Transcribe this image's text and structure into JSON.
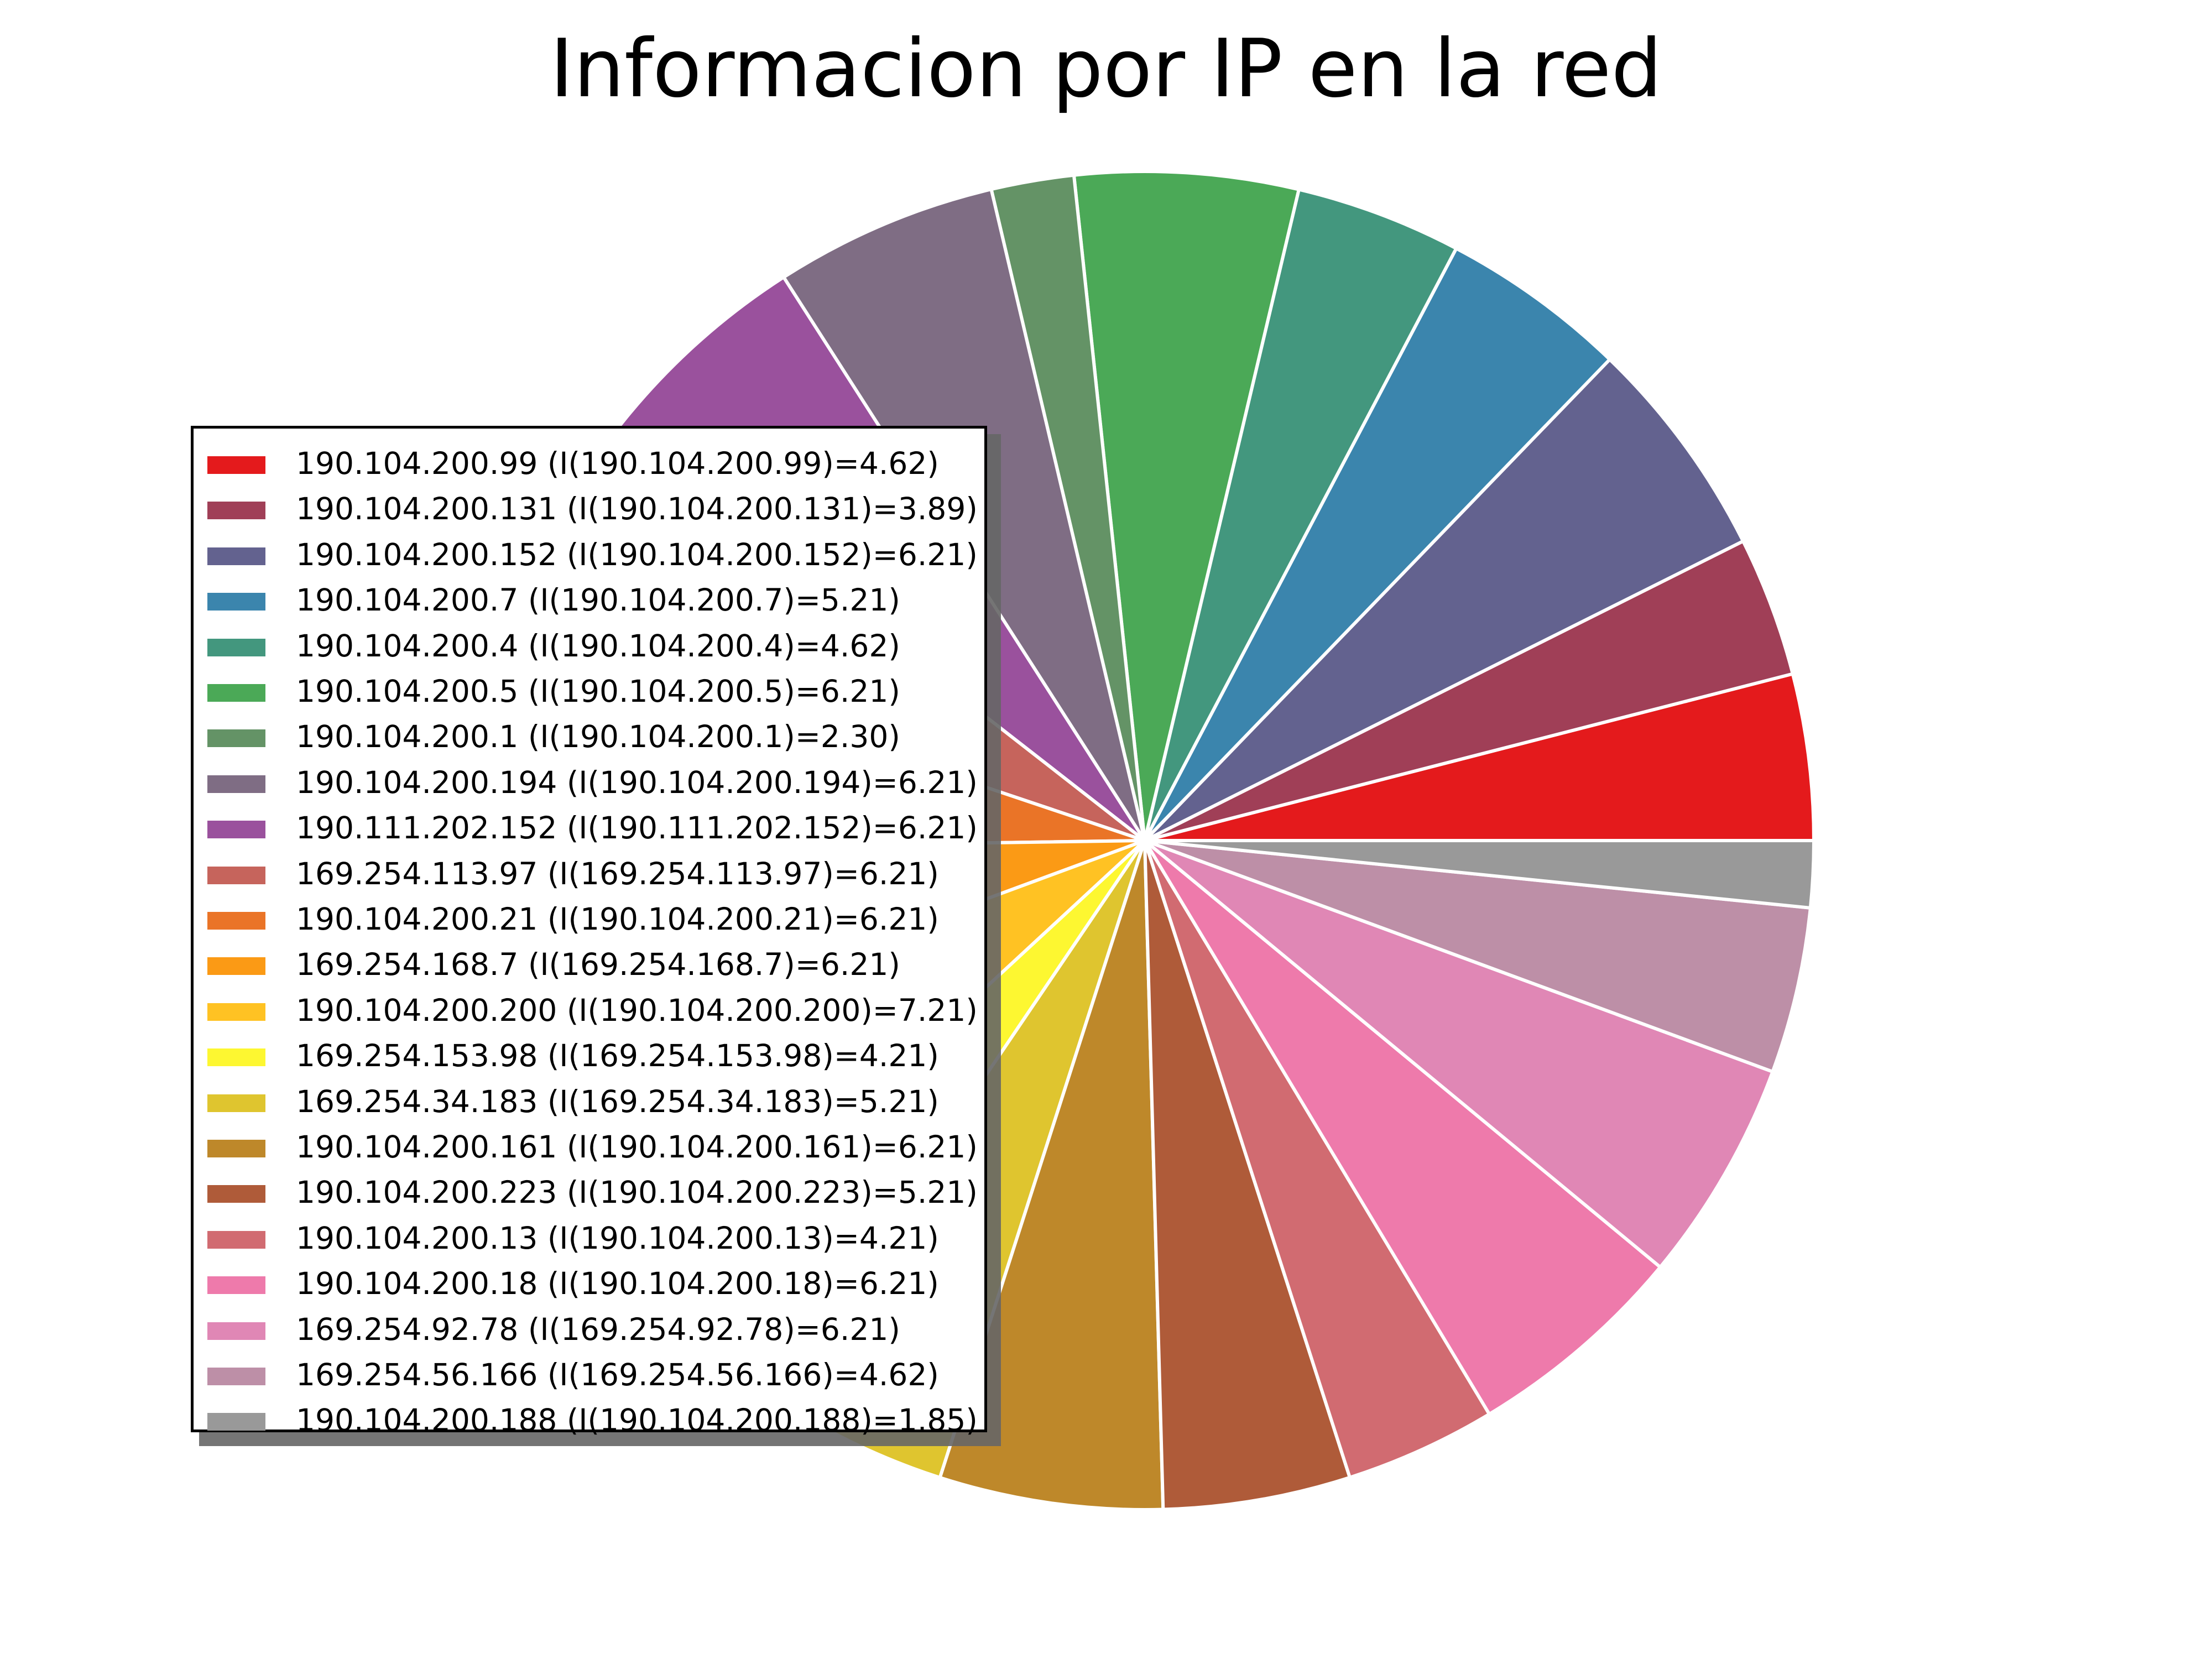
{
  "title": "Informacion por IP en la red",
  "chart_data": {
    "type": "pie",
    "title": "Informacion por IP en la red",
    "legend_position": "center-left",
    "categories": [
      "190.104.200.99",
      "190.104.200.131",
      "190.104.200.152",
      "190.104.200.7",
      "190.104.200.4",
      "190.104.200.5",
      "190.104.200.1",
      "190.104.200.194",
      "190.111.202.152",
      "169.254.113.97",
      "190.104.200.21",
      "169.254.168.7",
      "190.104.200.200",
      "169.254.153.98",
      "169.254.34.183",
      "190.104.200.161",
      "190.104.200.223",
      "190.104.200.13",
      "190.104.200.18",
      "169.254.92.78",
      "169.254.56.166",
      "190.104.200.188"
    ],
    "values": [
      4.62,
      3.89,
      6.21,
      5.21,
      4.62,
      6.21,
      2.3,
      6.21,
      6.21,
      6.21,
      6.21,
      6.21,
      7.21,
      4.21,
      5.21,
      6.21,
      5.21,
      4.21,
      6.21,
      6.21,
      4.62,
      1.85
    ],
    "legend_labels": [
      "190.104.200.99 (I(190.104.200.99)=4.62)",
      "190.104.200.131 (I(190.104.200.131)=3.89)",
      "190.104.200.152 (I(190.104.200.152)=6.21)",
      "190.104.200.7 (I(190.104.200.7)=5.21)",
      "190.104.200.4 (I(190.104.200.4)=4.62)",
      "190.104.200.5 (I(190.104.200.5)=6.21)",
      "190.104.200.1 (I(190.104.200.1)=2.30)",
      "190.104.200.194 (I(190.104.200.194)=6.21)",
      "190.111.202.152 (I(190.111.202.152)=6.21)",
      "169.254.113.97 (I(169.254.113.97)=6.21)",
      "190.104.200.21 (I(190.104.200.21)=6.21)",
      "169.254.168.7 (I(169.254.168.7)=6.21)",
      "190.104.200.200 (I(190.104.200.200)=7.21)",
      "169.254.153.98 (I(169.254.153.98)=4.21)",
      "169.254.34.183 (I(169.254.34.183)=5.21)",
      "190.104.200.161 (I(190.104.200.161)=6.21)",
      "190.104.200.223 (I(190.104.200.223)=5.21)",
      "190.104.200.13 (I(190.104.200.13)=4.21)",
      "190.104.200.18 (I(190.104.200.18)=6.21)",
      "169.254.92.78 (I(169.254.92.78)=6.21)",
      "169.254.56.166 (I(169.254.56.166)=4.62)",
      "190.104.200.188 (I(190.104.200.188)=1.85)"
    ],
    "colors": [
      "#e41a1c",
      "#a03f57",
      "#63628f",
      "#3b85ad",
      "#43977e",
      "#4ba957",
      "#649366",
      "#7f6d84",
      "#9a519d",
      "#c6645c",
      "#ea7427",
      "#fb9a15",
      "#ffc223",
      "#fdf731",
      "#dfc52f",
      "#be882a",
      "#af5b39",
      "#d16b71",
      "#ee7aab",
      "#e087b5",
      "#bd8fa7",
      "#999999"
    ],
    "start_angle_deg": 0,
    "direction": "counterclockwise"
  }
}
